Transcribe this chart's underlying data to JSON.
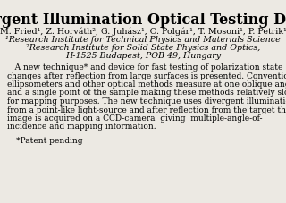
{
  "title": "Divergent Illumination Optical Testing Device",
  "authors": "M. Fried¹, Z. Horváth², G. Juhász¹, O. Polgár¹, T. Mosoni¹, P. Petrik¹",
  "affil1": "¹Research Institute for Technical Physics and Materials Science",
  "affil2": "²Research Institute for Solid State Physics and Optics,",
  "affil3": "H-1525 Budapest, POB 49, Hungary",
  "body_lines": [
    "   A new technique* and device for fast testing of polarization state",
    "changes after reflection from large surfaces is presented. Conventional",
    "ellipsometers and other optical methods measure at one oblique angle",
    "and a single point of the sample making these methods relatively slow",
    "for mapping purposes. The new technique uses divergent illumination",
    "from a point-like light-source and after reflection from the target the",
    "image is acquired on a CCD-camera  giving  multiple-angle-of-",
    "incidence and mapping information."
  ],
  "footnote": "*Patent pending",
  "bg_color": "#ece9e3",
  "title_fontsize": 11.5,
  "author_fontsize": 6.8,
  "affil_fontsize": 6.8,
  "body_fontsize": 6.5,
  "footnote_fontsize": 6.5
}
